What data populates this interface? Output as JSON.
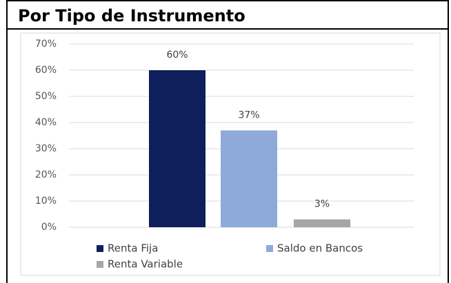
{
  "chart_data": {
    "type": "bar",
    "title": "Por Tipo de Instrumento",
    "categories": [
      "Renta Fija",
      "Saldo en Bancos",
      "Renta Variable"
    ],
    "values": [
      60,
      37,
      3
    ],
    "value_labels": [
      "60%",
      "37%",
      "3%"
    ],
    "colors": [
      "#0e1f5b",
      "#8eaadb",
      "#a6a6a6"
    ],
    "ylim": [
      0,
      70
    ],
    "yticks": [
      {
        "value": 0,
        "label": "0%"
      },
      {
        "value": 10,
        "label": "10%"
      },
      {
        "value": 20,
        "label": "20%"
      },
      {
        "value": 30,
        "label": "30%"
      },
      {
        "value": 40,
        "label": "40%"
      },
      {
        "value": 50,
        "label": "50%"
      },
      {
        "value": 60,
        "label": "60%"
      },
      {
        "value": 70,
        "label": "70%"
      }
    ],
    "grid": true,
    "legend": "bottom"
  }
}
